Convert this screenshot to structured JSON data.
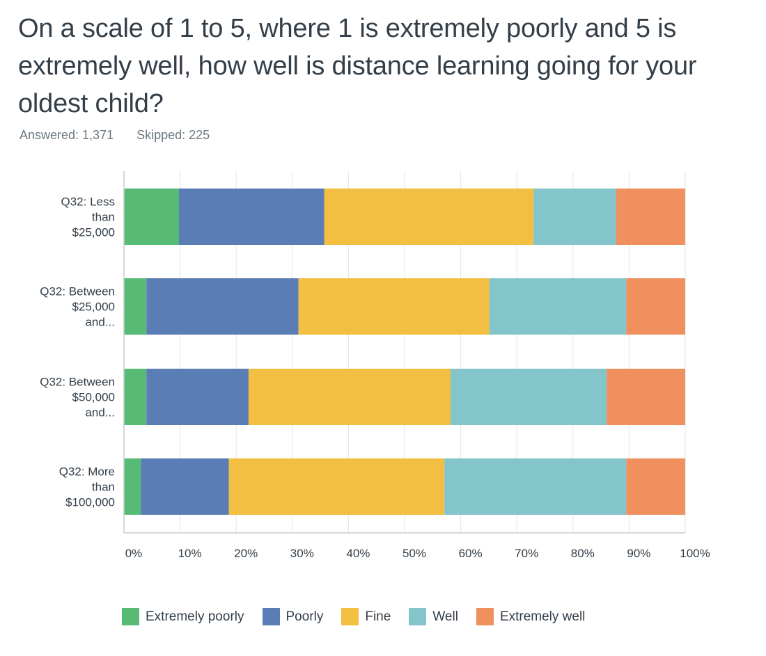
{
  "question": {
    "title": "On a scale of 1 to 5, where 1 is extremely poorly and 5 is extremely well, how well is distance learning going for your oldest child?",
    "answered": "Answered: 1,371",
    "skipped": "Skipped: 225"
  },
  "chart_data": {
    "type": "bar",
    "orientation": "horizontal",
    "stacked": true,
    "categories": [
      [
        "Q32: Less",
        "than",
        "$25,000"
      ],
      [
        "Q32: Between",
        "$25,000",
        "and..."
      ],
      [
        "Q32: Between",
        "$50,000",
        "and..."
      ],
      [
        "Q32: More",
        "than",
        "$100,000"
      ]
    ],
    "series": [
      {
        "name": "Extremely poorly",
        "color": "#57bb76",
        "values": [
          9.8,
          4.0,
          4.0,
          3.0
        ]
      },
      {
        "name": "Poorly",
        "color": "#5a7db5",
        "values": [
          25.9,
          27.1,
          18.2,
          15.7
        ]
      },
      {
        "name": "Fine",
        "color": "#f2bf42",
        "values": [
          37.3,
          34.0,
          36.0,
          38.4
        ]
      },
      {
        "name": "Well",
        "color": "#83c5ca",
        "values": [
          14.7,
          24.4,
          27.8,
          32.4
        ]
      },
      {
        "name": "Extremely well",
        "color": "#f0905e",
        "values": [
          12.3,
          10.5,
          14.0,
          10.5
        ]
      }
    ],
    "xlim": [
      0,
      100
    ],
    "xticks": [
      "0%",
      "10%",
      "20%",
      "30%",
      "40%",
      "50%",
      "60%",
      "70%",
      "80%",
      "90%",
      "100%"
    ],
    "grid": true,
    "legend_position": "bottom",
    "colors": {
      "grid": "#e2e4e6",
      "axis": "#c7cbce"
    }
  }
}
